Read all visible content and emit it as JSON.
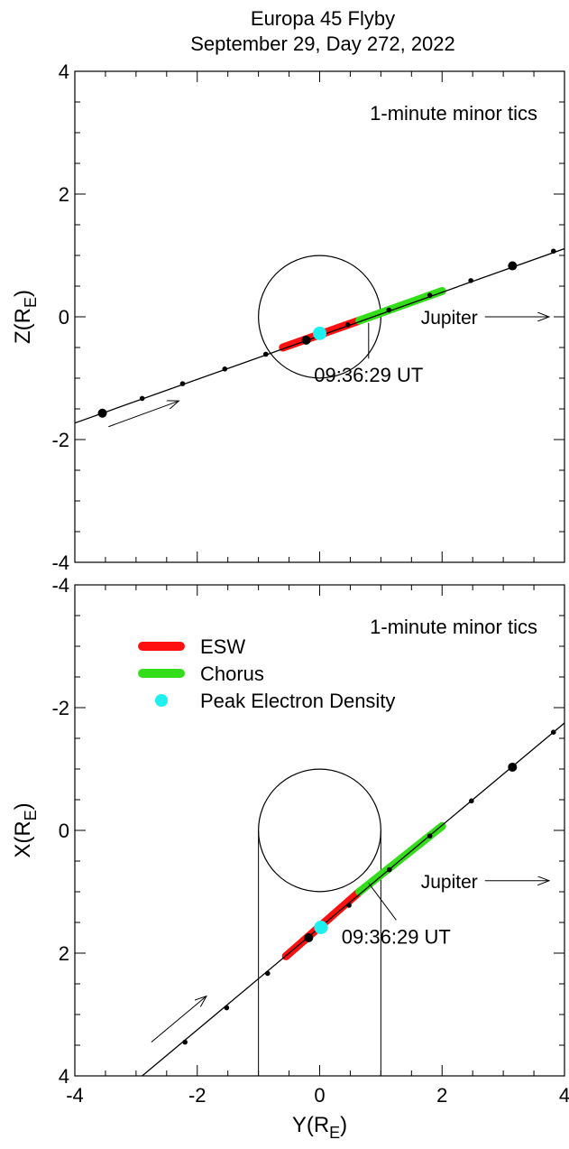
{
  "title": {
    "line1": "Europa 45 Flyby",
    "line2": "September 29, Day 272, 2022"
  },
  "colors": {
    "esw": "#ff1010",
    "chorus": "#33dd1a",
    "peak": "#1ef0f0",
    "line": "#000000"
  },
  "chart_data": [
    {
      "type": "scatter",
      "panel": "top",
      "xlabel": "",
      "ylabel_main": "Z(R",
      "ylabel_sub": "E",
      "ylabel_close": ")",
      "xlim": [
        -4,
        4
      ],
      "ylim": [
        -4,
        4
      ],
      "yticks": [
        "-4",
        "-2",
        "0",
        "2",
        "4"
      ],
      "xticks": [
        "",
        "",
        "",
        "",
        ""
      ],
      "annotation": "1-minute minor tics",
      "jupiter_label": "Jupiter",
      "ca_label": "09:36:29 UT",
      "europa": {
        "cx": 0,
        "cy": 0,
        "r": 1
      },
      "trajectory": {
        "x1": -4,
        "y1": -1.73,
        "x2": 4,
        "y2": 1.11
      },
      "minor_tics": [
        [
          -2.9,
          -1.33
        ],
        [
          -2.24,
          -1.09
        ],
        [
          -1.55,
          -0.85
        ],
        [
          -0.88,
          -0.61
        ],
        [
          0.46,
          -0.13
        ],
        [
          1.13,
          0.11
        ],
        [
          1.8,
          0.35
        ],
        [
          2.47,
          0.59
        ],
        [
          3.82,
          1.07
        ]
      ],
      "major_tics": [
        [
          -3.55,
          -1.57
        ],
        [
          -0.22,
          -0.38
        ],
        [
          3.15,
          0.83
        ]
      ],
      "esw_segment": [
        [
          -0.6,
          -0.5
        ],
        [
          0.65,
          -0.06
        ]
      ],
      "chorus_segment": [
        [
          0.65,
          -0.06
        ],
        [
          2.0,
          0.42
        ]
      ],
      "peak_density": [
        0.0,
        -0.27
      ],
      "ca_point": [
        0.8,
        -0.1
      ],
      "ca_label_anchor": [
        0.8,
        -0.68
      ],
      "approach_arrow": {
        "from": [
          -3.45,
          -1.79
        ],
        "to": [
          -2.3,
          -1.37
        ]
      },
      "jupiter_arrow": {
        "from": [
          2.7,
          0
        ],
        "to": [
          3.75,
          0
        ]
      }
    },
    {
      "type": "scatter",
      "panel": "bottom",
      "xlabel_main": "Y(R",
      "xlabel_sub": "E",
      "xlabel_close": ")",
      "ylabel_main": "X(R",
      "ylabel_sub": "E",
      "ylabel_close": ")",
      "xlim": [
        -4,
        4
      ],
      "ylim": [
        4,
        -4
      ],
      "yticks": [
        "4",
        "2",
        "0",
        "-2",
        "-4"
      ],
      "xticks": [
        "-4",
        "-2",
        "0",
        "2",
        "4"
      ],
      "annotation": "1-minute minor tics",
      "jupiter_label": "Jupiter",
      "ca_label": "09:36:29 UT",
      "legend": [
        {
          "label": "ESW",
          "kind": "bar",
          "colorKey": "esw"
        },
        {
          "label": "Chorus",
          "kind": "bar",
          "colorKey": "chorus"
        },
        {
          "label": "Peak Electron Density",
          "kind": "dot",
          "colorKey": "peak"
        }
      ],
      "europa": {
        "cx": 0,
        "cy": 0,
        "r": 1
      },
      "wake_lines": [
        [
          -1,
          0,
          -1,
          4
        ],
        [
          1,
          0,
          1,
          4
        ]
      ],
      "trajectory": {
        "x1": -2.9,
        "y1": 4.0,
        "x2": 4,
        "y2": -1.75
      },
      "minor_tics": [
        [
          -2.2,
          3.45
        ],
        [
          -1.52,
          2.89
        ],
        [
          -0.85,
          2.33
        ],
        [
          0.48,
          1.22
        ],
        [
          1.14,
          0.64
        ],
        [
          1.8,
          0.09
        ],
        [
          2.48,
          -0.48
        ],
        [
          3.82,
          -1.6
        ]
      ],
      "major_tics": [
        [
          -0.18,
          1.75
        ],
        [
          3.15,
          -1.03
        ]
      ],
      "esw_segment": [
        [
          -0.55,
          2.05
        ],
        [
          0.65,
          1.0
        ]
      ],
      "chorus_segment": [
        [
          0.65,
          1.0
        ],
        [
          2.0,
          -0.07
        ]
      ],
      "peak_density": [
        0.02,
        1.58
      ],
      "ca_point": [
        0.8,
        0.86
      ],
      "ca_label_anchor": [
        1.25,
        1.46
      ],
      "approach_arrow": {
        "from": [
          -2.75,
          3.45
        ],
        "to": [
          -1.85,
          2.7
        ]
      },
      "jupiter_arrow": {
        "from": [
          2.7,
          0.82
        ],
        "to": [
          3.75,
          0.82
        ]
      }
    }
  ]
}
